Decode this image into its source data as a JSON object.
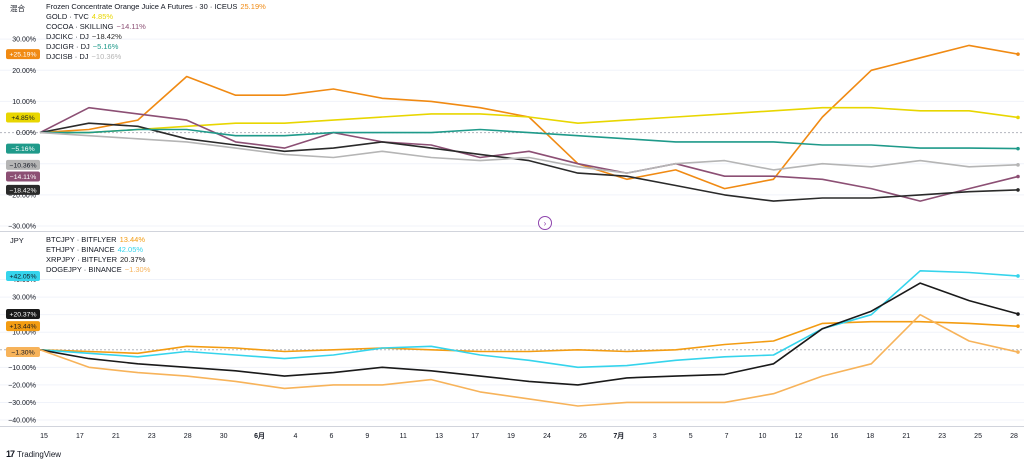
{
  "top_pane": {
    "axis_title": "混合",
    "legend": [
      {
        "name": "Frozen Concentrate Orange Juice A Futures · 30 · ICEUS",
        "value": "25.19%",
        "color": "#f08a13"
      },
      {
        "name": "GOLD · TVC",
        "value": "4.85%",
        "color": "#e8d600"
      },
      {
        "name": "COCOA · SKILLING",
        "value": "−14.11%",
        "color": "#8c4f74"
      },
      {
        "name": "DJCIKC · DJ",
        "value": "−18.42%",
        "color": "#2a2a2a"
      },
      {
        "name": "DJCIGR · DJ",
        "value": "−5.16%",
        "color": "#1f9a8a"
      },
      {
        "name": "DJCISB · DJ",
        "value": "−10.36%",
        "color": "#b5b5b5"
      }
    ],
    "badges": [
      {
        "label": "+25.19%",
        "value": 25.19,
        "color": "#f08a13",
        "text_color": "#ffffff"
      },
      {
        "label": "+4.85%",
        "value": 4.85,
        "color": "#e8d600",
        "text_color": "#131722"
      },
      {
        "label": "−5.16%",
        "value": -5.16,
        "color": "#1f9a8a",
        "text_color": "#ffffff"
      },
      {
        "label": "−10.36%",
        "value": -10.36,
        "color": "#b5b5b5",
        "text_color": "#131722"
      },
      {
        "label": "−14.11%",
        "value": -14.11,
        "color": "#8c4f74",
        "text_color": "#ffffff"
      },
      {
        "label": "−18.42%",
        "value": -18.42,
        "color": "#2a2a2a",
        "text_color": "#ffffff"
      }
    ]
  },
  "bottom_pane": {
    "axis_title": "JPY",
    "legend": [
      {
        "name": "BTCJPY · BITFLYER",
        "value": "13.44%",
        "color": "#f39c12"
      },
      {
        "name": "ETHJPY · BINANCE",
        "value": "42.05%",
        "color": "#35d4ec"
      },
      {
        "name": "XRPJPY · BITFLYER",
        "value": "20.37%",
        "color": "#1a1a1a"
      },
      {
        "name": "DOGEJPY · BINANCE",
        "value": "−1.30%",
        "color": "#f7b35a"
      }
    ],
    "badges": [
      {
        "label": "+42.05%",
        "value": 42.05,
        "color": "#35d4ec",
        "text_color": "#131722"
      },
      {
        "label": "+20.37%",
        "value": 20.37,
        "color": "#1a1a1a",
        "text_color": "#ffffff"
      },
      {
        "label": "+13.44%",
        "value": 13.44,
        "color": "#f39c12",
        "text_color": "#131722"
      },
      {
        "label": "−1.30%",
        "value": -1.3,
        "color": "#f7b35a",
        "text_color": "#131722"
      }
    ]
  },
  "footer": {
    "brand": "TradingView"
  },
  "colors": {
    "grid": "#f0f3fa",
    "separator": "#d1d4dc",
    "zero_line": "#b2b5be"
  },
  "chart_data": [
    {
      "type": "line",
      "pane": "top",
      "ylim": [
        -30,
        40
      ],
      "yticks": [
        -30,
        -20,
        -10,
        0,
        10,
        20,
        30
      ],
      "yticklabels": [
        "−30.00%",
        "−20.00%",
        "−10.00%",
        "0.00%",
        "10.00%",
        "20.00%",
        "30.00%"
      ],
      "x": [
        0,
        0.05,
        0.1,
        0.15,
        0.2,
        0.25,
        0.3,
        0.35,
        0.4,
        0.45,
        0.5,
        0.55,
        0.6,
        0.65,
        0.7,
        0.75,
        0.8,
        0.85,
        0.9,
        0.95,
        1.0
      ],
      "series": [
        {
          "name": "Frozen Concentrate Orange Juice A Futures · 30 · ICEUS",
          "color": "#f08a13",
          "values": [
            0,
            1,
            4,
            18,
            12,
            12,
            14,
            11,
            10,
            8,
            5,
            -10,
            -15,
            -12,
            -18,
            -15,
            5,
            20,
            24,
            28,
            25.19
          ]
        },
        {
          "name": "GOLD · TVC",
          "color": "#e8d600",
          "values": [
            0,
            0,
            1,
            2,
            3,
            3,
            4,
            5,
            6,
            6,
            5,
            3,
            4,
            5,
            6,
            7,
            8,
            8,
            7,
            7,
            4.85
          ]
        },
        {
          "name": "COCOA · SKILLING",
          "color": "#8c4f74",
          "values": [
            0,
            8,
            6,
            4,
            -3,
            -5,
            0,
            -3,
            -4,
            -8,
            -6,
            -10,
            -13,
            -10,
            -14,
            -14,
            -15,
            -18,
            -22,
            -18,
            -14.11
          ]
        },
        {
          "name": "DJCIKC · DJ",
          "color": "#2a2a2a",
          "values": [
            0,
            3,
            2,
            -2,
            -4,
            -6,
            -5,
            -3,
            -5,
            -7,
            -9,
            -13,
            -14,
            -17,
            -20,
            -22,
            -21,
            -21,
            -20,
            -19,
            -18.42
          ]
        },
        {
          "name": "DJCIGR · DJ",
          "color": "#1f9a8a",
          "values": [
            0,
            0,
            1,
            1,
            -1,
            -1,
            0,
            0,
            0,
            1,
            0,
            -1,
            -2,
            -3,
            -3,
            -3,
            -4,
            -4,
            -5,
            -5,
            -5.16
          ]
        },
        {
          "name": "DJCISB · DJ",
          "color": "#b5b5b5",
          "values": [
            0,
            -1,
            -2,
            -3,
            -5,
            -7,
            -8,
            -6,
            -8,
            -9,
            -8,
            -11,
            -13,
            -10,
            -9,
            -12,
            -10,
            -11,
            -9,
            -11,
            -10.36
          ]
        }
      ]
    },
    {
      "type": "line",
      "pane": "bottom",
      "ylim": [
        -40,
        50
      ],
      "yticks": [
        -40,
        -30,
        -20,
        -10,
        0,
        10,
        20,
        30,
        40
      ],
      "yticklabels": [
        "−40.00%",
        "−30.00%",
        "−20.00%",
        "−10.00%",
        "0.00%",
        "10.00%",
        "20.00%",
        "30.00%",
        "40.00%"
      ],
      "x": [
        0,
        0.05,
        0.1,
        0.15,
        0.2,
        0.25,
        0.3,
        0.35,
        0.4,
        0.45,
        0.5,
        0.55,
        0.6,
        0.65,
        0.7,
        0.75,
        0.8,
        0.85,
        0.9,
        0.95,
        1.0
      ],
      "series": [
        {
          "name": "BTCJPY · BITFLYER",
          "color": "#f39c12",
          "values": [
            0,
            -1,
            -2,
            2,
            1,
            -1,
            0,
            1,
            0,
            -1,
            -1,
            0,
            -1,
            0,
            3,
            5,
            15,
            16,
            16,
            15,
            13.44
          ]
        },
        {
          "name": "ETHJPY · BINANCE",
          "color": "#35d4ec",
          "values": [
            0,
            -2,
            -4,
            -1,
            -3,
            -5,
            -3,
            1,
            2,
            -3,
            -6,
            -10,
            -9,
            -6,
            -4,
            -3,
            12,
            20,
            45,
            44,
            42.05
          ]
        },
        {
          "name": "XRPJPY · BITFLYER",
          "color": "#1a1a1a",
          "values": [
            0,
            -5,
            -8,
            -10,
            -12,
            -15,
            -13,
            -10,
            -12,
            -15,
            -18,
            -20,
            -16,
            -15,
            -14,
            -8,
            12,
            22,
            38,
            28,
            20.37
          ]
        },
        {
          "name": "DOGEJPY · BINANCE",
          "color": "#f7b35a",
          "values": [
            0,
            -10,
            -13,
            -15,
            -18,
            -22,
            -20,
            -20,
            -17,
            -24,
            -28,
            -32,
            -30,
            -30,
            -30,
            -25,
            -15,
            -8,
            20,
            5,
            -1.3
          ]
        }
      ]
    }
  ],
  "x_axis": {
    "ticks": [
      "15",
      "17",
      "21",
      "23",
      "28",
      "30",
      "6月",
      "4",
      "6",
      "9",
      "11",
      "13",
      "17",
      "19",
      "24",
      "26",
      "7月",
      "3",
      "5",
      "7",
      "10",
      "12",
      "16",
      "18",
      "21",
      "23",
      "25",
      "28"
    ],
    "bold": [
      "6月",
      "7月"
    ]
  }
}
